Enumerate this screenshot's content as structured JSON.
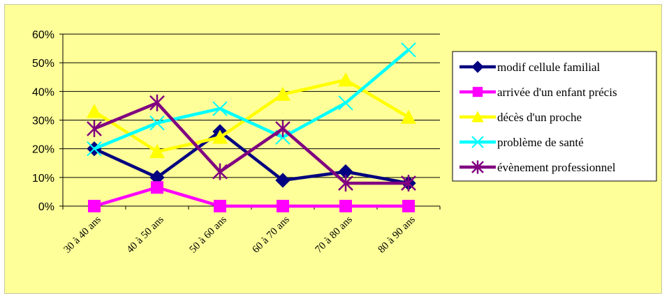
{
  "chart_data": {
    "type": "line",
    "categories": [
      "30 à 40 ans",
      "40 à 50 ans",
      "50 à 60 ans",
      "60 à 70 ans",
      "70 à 80 ans",
      "80 à 90 ans"
    ],
    "ylim": [
      0,
      0.6
    ],
    "yticks": [
      "0%",
      "10%",
      "20%",
      "30%",
      "40%",
      "50%",
      "60%"
    ],
    "grid": true,
    "legend_position": "right",
    "series": [
      {
        "name": "modif cellule familial",
        "color": "#000080",
        "marker": "diamond",
        "values": [
          0.2,
          0.1,
          0.26,
          0.09,
          0.12,
          0.08
        ]
      },
      {
        "name": "arrivée d'un enfant précis",
        "color": "#ff00ff",
        "marker": "square",
        "values": [
          0.0,
          0.065,
          0.0,
          0.0,
          0.0,
          0.0
        ]
      },
      {
        "name": "décès d'un proche",
        "color": "#ffff00",
        "marker": "triangle",
        "values": [
          0.33,
          0.19,
          0.24,
          0.39,
          0.44,
          0.31
        ]
      },
      {
        "name": "problème de santé",
        "color": "#00ffff",
        "marker": "x",
        "values": [
          0.2,
          0.29,
          0.34,
          0.24,
          0.36,
          0.545
        ]
      },
      {
        "name": "évènement professionnel",
        "color": "#800080",
        "marker": "star",
        "values": [
          0.27,
          0.36,
          0.12,
          0.27,
          0.08,
          0.08
        ]
      }
    ]
  }
}
